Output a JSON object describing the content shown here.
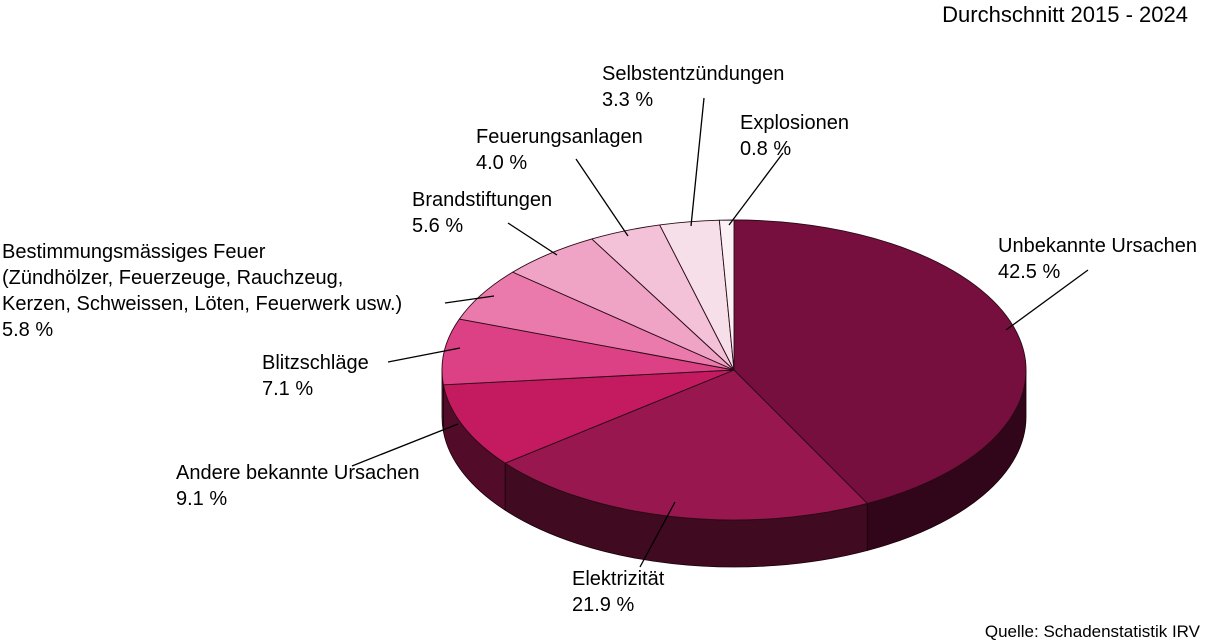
{
  "chart_data": {
    "type": "pie",
    "title": "Durchschnitt 2015 - 2024",
    "source": "Quelle: Schadenstatistik IRV",
    "slices": [
      {
        "label": [
          "Unbekannte Ursachen"
        ],
        "value_label": "42.5 %",
        "value": 42.5,
        "color": "#760f3e"
      },
      {
        "label": [
          "Elektrizität"
        ],
        "value_label": "21.9 %",
        "value": 21.9,
        "color": "#98174f"
      },
      {
        "label": [
          "Andere bekannte Ursachen"
        ],
        "value_label": "9.1 %",
        "value": 9.1,
        "color": "#c41a60"
      },
      {
        "label": [
          "Blitzschläge"
        ],
        "value_label": "7.1 %",
        "value": 7.1,
        "color": "#dc4085"
      },
      {
        "label": [
          "Bestimmungsmässiges Feuer",
          "(Zündhölzer, Feuerzeuge, Rauchzeug,",
          "Kerzen, Schweissen, Löten, Feuerwerk usw.)"
        ],
        "value_label": "5.8 %",
        "value": 5.8,
        "color": "#e97aab"
      },
      {
        "label": [
          "Brandstiftungen"
        ],
        "value_label": "5.6 %",
        "value": 5.6,
        "color": "#efa3c5"
      },
      {
        "label": [
          "Feuerungsanlagen"
        ],
        "value_label": "4.0 %",
        "value": 4.0,
        "color": "#f3c2d8"
      },
      {
        "label": [
          "Selbstentzündungen"
        ],
        "value_label": "3.3 %",
        "value": 3.3,
        "color": "#f7dfea"
      },
      {
        "label": [
          "Explosionen"
        ],
        "value_label": "0.8 %",
        "value": 0.8,
        "color": "#fbf0f5"
      }
    ]
  }
}
